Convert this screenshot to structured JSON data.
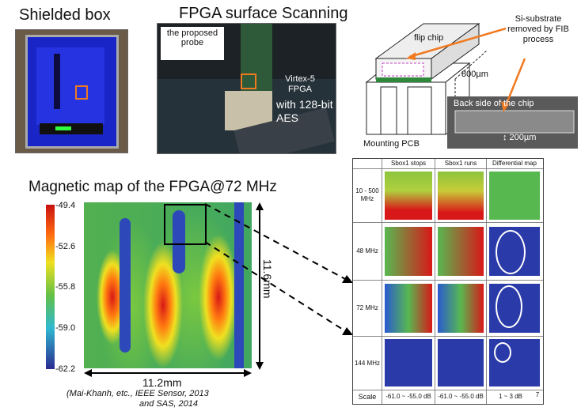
{
  "titles": {
    "shielded_box": "Shielded box",
    "fpga_scanning": "FPGA surface Scanning",
    "magnetic_map": "Magnetic map of the FPGA@72 MHz"
  },
  "fpga_photo": {
    "probe_label": "the proposed probe",
    "fpga_label": "Virtex-5 FPGA",
    "aes_label": "with 128-bit AES"
  },
  "chip_diagram": {
    "flip_chip": "flip chip",
    "dimension_800": "800µm",
    "mounting_pcb": "Mounting PCB",
    "si_note": "Si-substrate removed by FIB process",
    "back_side": "Back side of the chip",
    "dimension_200": "↕ 200µm"
  },
  "colorbar": {
    "ticks": [
      "-49.4",
      "-52.6",
      "-55.8",
      "-59.0",
      "-62.2"
    ]
  },
  "map_axes": {
    "width_label": "11.2mm",
    "height_label": "11.6mm"
  },
  "citation": {
    "line1": "(Mai-Khanh, etc., IEEE Sensor, 2013",
    "line2": "and SAS, 2014"
  },
  "table": {
    "col_headers": [
      "Sbox1 stops",
      "Sbox1 runs",
      "Differential map"
    ],
    "row_labels": [
      "10 - 500 MHz",
      "48 MHz",
      "72 MHz",
      "144 MHz"
    ],
    "scale_label": "Scale",
    "scale_values": [
      "-61.0 ~ -55.0 dB",
      "-61.0 ~ -55.0 dB",
      "1 ~ 3 dB"
    ],
    "page_number": "7"
  },
  "colors": {
    "heat_red": "#e01818",
    "heat_yellow": "#f0e020",
    "heat_green": "#62c046",
    "heat_blue": "#2a3aa8",
    "arrow_orange": "#f07a20",
    "box_blue": "#1a2fd0"
  }
}
